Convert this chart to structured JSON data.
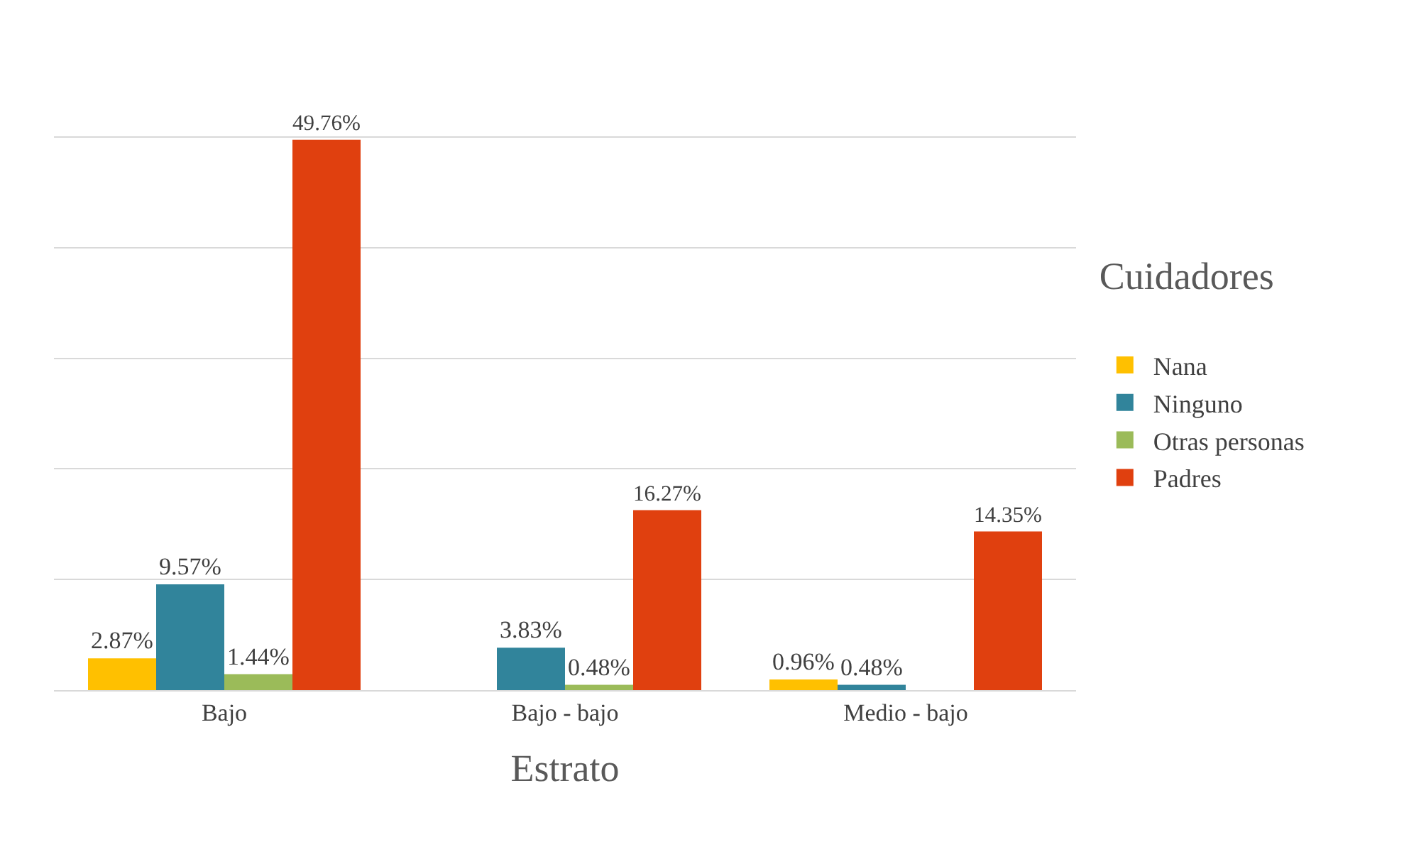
{
  "chart_data": {
    "type": "bar",
    "xlabel": "Estrato",
    "legend_title": "Cuidadores",
    "categories": [
      "Bajo",
      "Bajo - bajo",
      "Medio - bajo"
    ],
    "series": [
      {
        "name": "Nana",
        "color": "#ffc000",
        "values": [
          2.87,
          null,
          0.96
        ],
        "value_labels": [
          "2.87%",
          null,
          "0.96%"
        ]
      },
      {
        "name": "Ninguno",
        "color": "#31849b",
        "values": [
          9.57,
          3.83,
          0.48
        ],
        "value_labels": [
          "9.57%",
          "3.83%",
          "0.48%"
        ]
      },
      {
        "name": "Otras personas",
        "color": "#9bbb59",
        "values": [
          1.44,
          0.48,
          null
        ],
        "value_labels": [
          "1.44%",
          "0.48%",
          null
        ]
      },
      {
        "name": "Padres",
        "color": "#e0400f",
        "values": [
          49.76,
          16.27,
          14.35
        ],
        "value_labels": [
          "49.76%",
          "16.27%",
          "14.35%"
        ]
      }
    ],
    "grid": "y",
    "legend": "right",
    "tick_labels": "x"
  }
}
